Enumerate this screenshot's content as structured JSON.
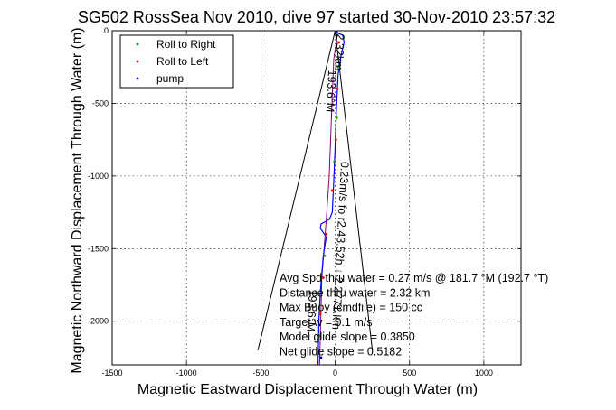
{
  "chart_data": {
    "type": "scatter",
    "title": "SG502 RossSea Nov 2010, dive 97 started 30-Nov-2010 23:57:32",
    "xlabel": "Magnetic Eastward Displacement Through Water (m)",
    "ylabel": "Magnetic Northward Displacement Through Water (m)",
    "xlim": [
      -1500,
      1250
    ],
    "ylim": [
      -2300,
      0
    ],
    "xticks": [
      -1500,
      -1000,
      -500,
      0,
      500,
      1000
    ],
    "yticks": [
      0,
      -500,
      -1000,
      -1500,
      -2000
    ],
    "xtick_labels": [
      "-1500",
      "-1000",
      "-500",
      "0",
      "500",
      "1000"
    ],
    "ytick_labels": [
      "0",
      "-500",
      "-1000",
      "-1500",
      "-2000"
    ],
    "grid": true,
    "legend_position": "top-left",
    "colors": {
      "roll_right": "#00a000",
      "roll_left": "#ff0000",
      "pump": "#000080",
      "track": "#0000ff",
      "track_alt": "#800080",
      "guide": "#000000"
    },
    "legend": [
      "Roll to Right",
      "Roll to Left",
      "pump"
    ],
    "series": [
      {
        "name": "Roll to Right",
        "points": [
          [
            15,
            -30
          ],
          [
            20,
            -250
          ],
          [
            10,
            -600
          ],
          [
            -5,
            -900
          ],
          [
            -50,
            -1300
          ],
          [
            -70,
            -1550
          ],
          [
            -90,
            -1800
          ],
          [
            -110,
            -2100
          ]
        ]
      },
      {
        "name": "Roll to Left",
        "points": [
          [
            25,
            -80
          ],
          [
            15,
            -400
          ],
          [
            5,
            -750
          ],
          [
            -20,
            -1100
          ],
          [
            -60,
            -1400
          ],
          [
            -80,
            -1700
          ],
          [
            -100,
            -1950
          ]
        ]
      },
      {
        "name": "pump",
        "points": [
          [
            10,
            -10
          ],
          [
            -95,
            -2250
          ]
        ]
      }
    ],
    "track": [
      [
        0,
        0
      ],
      [
        25,
        -20
      ],
      [
        50,
        -30
      ],
      [
        60,
        -80
      ],
      [
        40,
        -170
      ],
      [
        20,
        -300
      ],
      [
        10,
        -500
      ],
      [
        0,
        -800
      ],
      [
        -10,
        -1050
      ],
      [
        -20,
        -1250
      ],
      [
        -40,
        -1300
      ],
      [
        -95,
        -1330
      ],
      [
        -100,
        -1360
      ],
      [
        -60,
        -1420
      ],
      [
        -80,
        -1550
      ],
      [
        -100,
        -1800
      ],
      [
        -110,
        -2000
      ],
      [
        -115,
        -2300
      ]
    ],
    "track_alt": [
      [
        0,
        0
      ],
      [
        15,
        -30
      ],
      [
        -10,
        -200
      ],
      [
        -25,
        -600
      ],
      [
        -40,
        -1000
      ],
      [
        -60,
        -1300
      ],
      [
        -90,
        -1700
      ],
      [
        -105,
        -2300
      ]
    ],
    "guide_lines": [
      [
        [
          0,
          0
        ],
        [
          -520,
          -2200
        ]
      ],
      [
        [
          0,
          0
        ],
        [
          250,
          -2200
        ]
      ]
    ],
    "annotations": [
      {
        "text": "2.32km",
        "x": 10,
        "y": -20,
        "angle": 93
      },
      {
        "text": "193.6°M",
        "x": -45,
        "y": -270,
        "angle": 93
      },
      {
        "text": "0.23m/s fo r2.43.52h ↓ 2.2771.km",
        "x": 40,
        "y": -900,
        "angle": 93
      },
      {
        "text": "193.6°M",
        "x": -175,
        "y": -1780,
        "angle": 93
      }
    ],
    "stats": [
      "Avg Spd thru water = 0.27 m/s @ 181.7   °M (192.7 °T)",
      "Distance thru water = 2.32 km",
      "Max Buoy (cmdfile) = 150 cc",
      "Target w = 0.1 m/s",
      "Model glide slope = 0.3850",
      "Net glide slope = 0.5182"
    ]
  }
}
